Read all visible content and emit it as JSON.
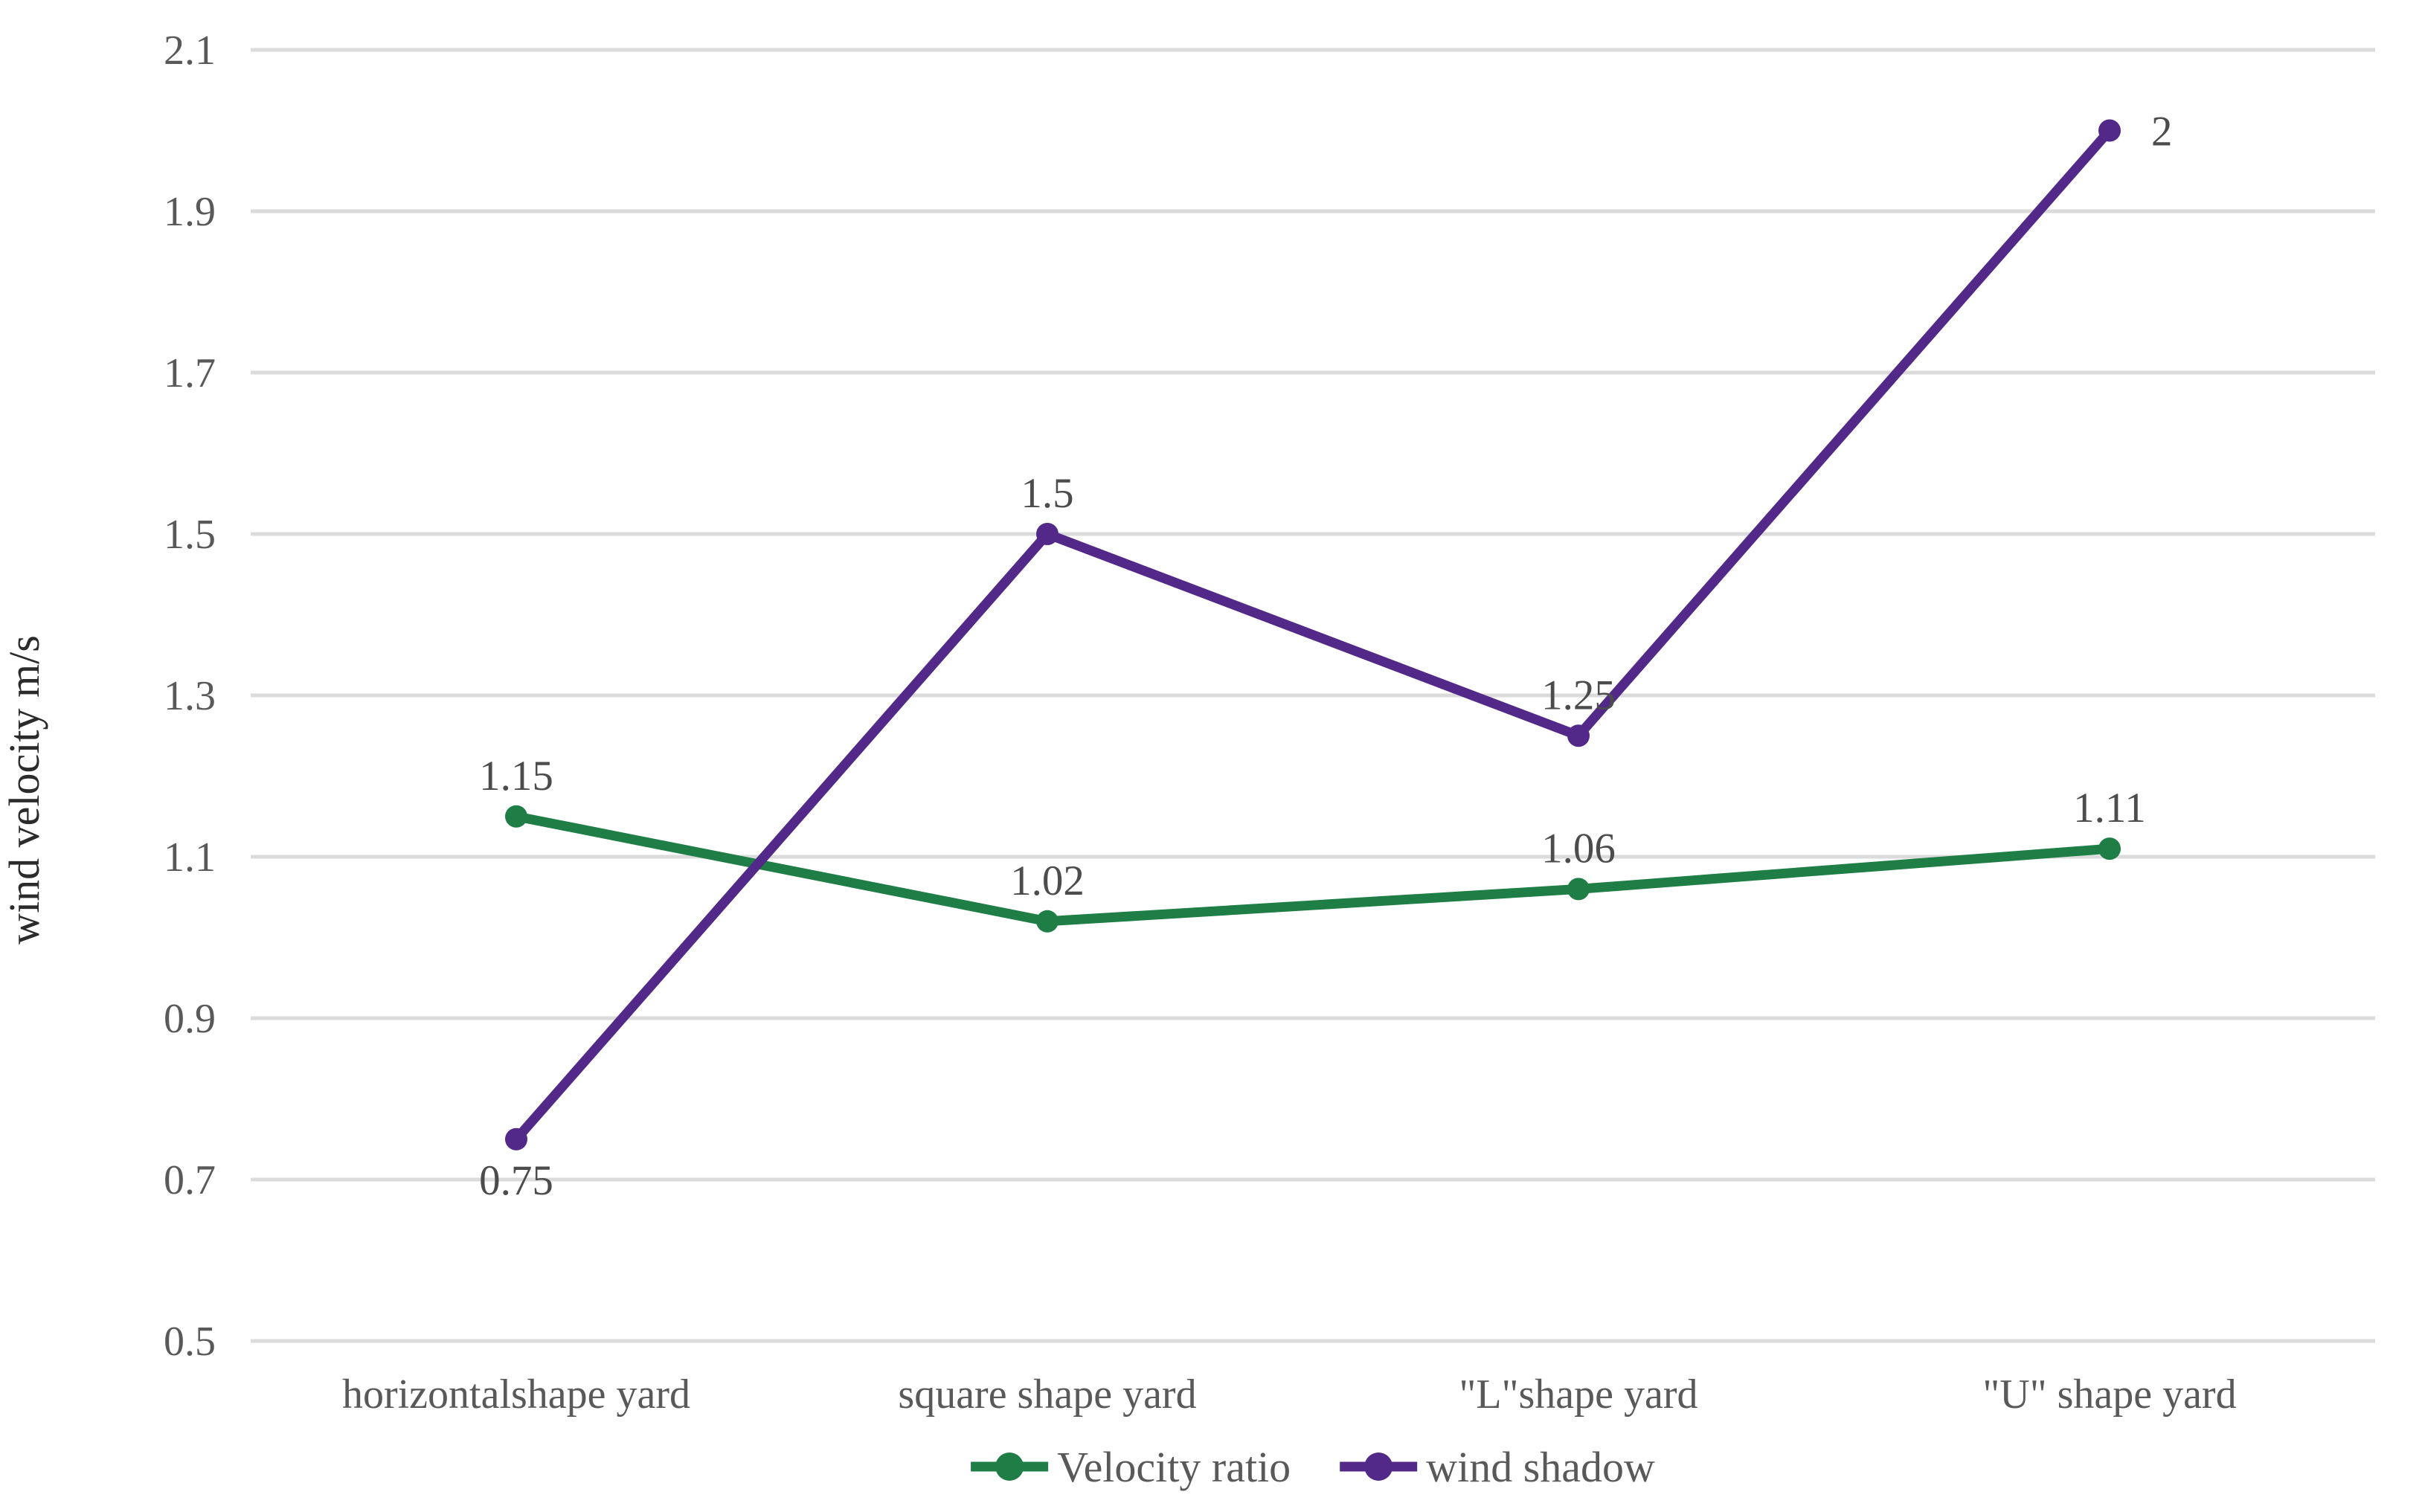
{
  "chart_data": {
    "type": "line",
    "categories": [
      "horizontalshape yard",
      "square shape yard",
      "\"L\"shape yard",
      "\"U\" shape yard"
    ],
    "series": [
      {
        "name": "Velocity ratio",
        "values": [
          1.15,
          1.02,
          1.06,
          1.11
        ],
        "labels": [
          "1.15",
          "1.02",
          "1.06",
          "1.11"
        ],
        "label_placement": [
          "above",
          "above",
          "above",
          "above"
        ],
        "color": "#1E7E45"
      },
      {
        "name": "wind shadow",
        "values": [
          0.75,
          1.5,
          1.25,
          2
        ],
        "labels": [
          "0.75",
          "1.5",
          "1.25",
          "2"
        ],
        "label_placement": [
          "below",
          "above",
          "above",
          "right"
        ],
        "color": "#522989"
      }
    ],
    "title": "",
    "xlabel": "",
    "ylabel": "wind velocity m/s",
    "ylim": [
      0.5,
      2.1
    ],
    "ytick_step": 0.2,
    "yticks": [
      "2.1",
      "1.9",
      "1.7",
      "1.5",
      "1.3",
      "1.1",
      "0.9",
      "0.7",
      "0.5"
    ],
    "grid": true,
    "legend_position": "bottom",
    "marker": "circle",
    "colors": {
      "gridline": "#DBDBDB",
      "tick_label": "#595959",
      "data_label": "#4c4c4c",
      "axis_title": "#2b2b2b",
      "background": "#FFFFFF"
    }
  }
}
